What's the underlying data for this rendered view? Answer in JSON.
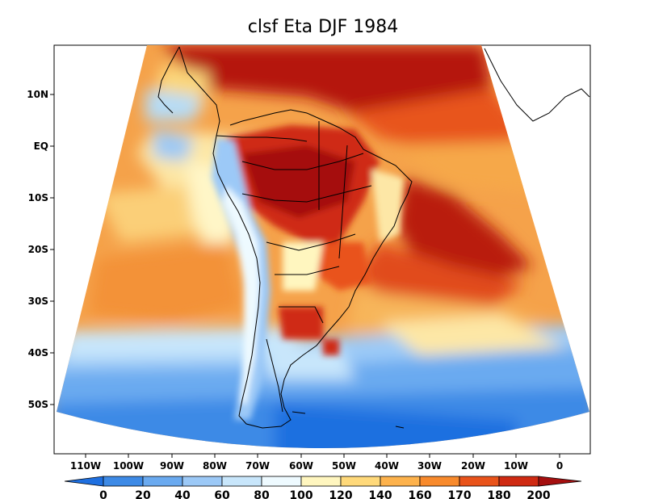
{
  "title": "clsf Eta DJF 1984",
  "lat_labels": [
    "10N",
    "EQ",
    "10S",
    "20S",
    "30S",
    "40S",
    "50S"
  ],
  "lon_labels": [
    "110W",
    "100W",
    "90W",
    "80W",
    "70W",
    "60W",
    "50W",
    "40W",
    "30W",
    "20W",
    "10W",
    "0"
  ],
  "colorbar": {
    "labels": [
      "0",
      "20",
      "40",
      "60",
      "80",
      "100",
      "120",
      "140",
      "160",
      "170",
      "180",
      "200"
    ],
    "colors": [
      "#1e6fe0",
      "#3d8ae6",
      "#6aaaf0",
      "#9cc9f7",
      "#c8e6fb",
      "#eefaff",
      "#fff6bf",
      "#ffd97a",
      "#fdb24c",
      "#f88a2c",
      "#e9531a",
      "#cf2a12",
      "#a50f0f"
    ],
    "under_color": "#1e6fe0",
    "over_color": "#a50f0f"
  },
  "colors": {
    "ocean_background": "#f5a24a",
    "land_outline": "#000000"
  }
}
